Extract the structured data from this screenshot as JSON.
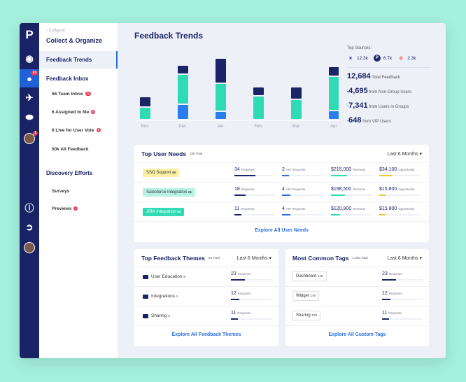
{
  "sidebar": {
    "collapse": "‹ Collapse",
    "heading": "Collect & Organize",
    "trends": "Feedback Trends",
    "inbox": "Feedback Inbox",
    "inbox_items": [
      {
        "label": "56 Team Inbox",
        "badge": "12"
      },
      {
        "label": "6 Assigned to Me",
        "badge": "6"
      },
      {
        "label": "6 Live for User Vote",
        "badge": "6"
      },
      {
        "label": "50k All Feedback",
        "badge": ""
      }
    ],
    "discovery": "Discovery Efforts",
    "discovery_items": [
      {
        "label": "Surveys",
        "badge": ""
      },
      {
        "label": "Previews",
        "badge": "2"
      }
    ]
  },
  "rail": {
    "inbox_badge": "23",
    "avatar_badge": "1",
    "icons": [
      "logo-p-icon",
      "eye-icon",
      "chat-icon",
      "rocket-icon",
      "toggle-icon",
      "avatar",
      "help-icon",
      "logout-icon",
      "avatar"
    ]
  },
  "page": {
    "title": "Feedback Trends"
  },
  "chart_data": {
    "type": "bar",
    "stacked": true,
    "categories": [
      "Nov.",
      "Dec.",
      "Jan.",
      "Feb.",
      "Mar.",
      "Apr."
    ],
    "series": [
      {
        "color": "#2a7ff0",
        "values": [
          0,
          22,
          12,
          0,
          0,
          13
        ]
      },
      {
        "color": "#2edbb5",
        "values": [
          18,
          43,
          40,
          34,
          29,
          49
        ]
      },
      {
        "color": "#1b2466",
        "values": [
          15,
          13,
          36,
          13,
          18,
          14
        ]
      }
    ]
  },
  "stats": {
    "top_sources_label": "Top Sources:",
    "sources": [
      {
        "icon": "zendesk-icon",
        "value": "12.3k"
      },
      {
        "icon": "productboard-icon",
        "value": "6.7k"
      },
      {
        "icon": "pinwheel-icon",
        "value": "2.3k"
      }
    ],
    "total": "12,684",
    "total_label": "Total Feedback",
    "breakdown": [
      {
        "value": "4,695",
        "label": "from Non-Group Users",
        "color": "#1b2466"
      },
      {
        "value": "7,341",
        "label": "from Users in Groups",
        "color": "#2edbb5"
      },
      {
        "value": "648",
        "label": "from VIP Users",
        "color": "#2a70e0"
      }
    ]
  },
  "needs": {
    "title": "Top User Needs",
    "total": "348 Total",
    "range": "Last 6 Months",
    "explore": "Explore All User Needs",
    "rows": [
      {
        "name": "SSO Support",
        "count": "45",
        "tag_bg": "#fdf0a6",
        "req": "34",
        "req_pct": 52,
        "vip": "2",
        "vip_pct": 17,
        "rev": "$215,000",
        "rev_pct": 40,
        "opp": "$34,100",
        "opp_pct": 32
      },
      {
        "name": "Salesforce Integration",
        "count": "21",
        "tag_bg": "#b7f2e3",
        "req": "18",
        "req_pct": 27,
        "vip": "4",
        "vip_pct": 20,
        "rev": "$198,500",
        "rev_pct": 34,
        "opp": "$15,800",
        "opp_pct": 15
      },
      {
        "name": "JIRA Integration",
        "count": "53",
        "tag_bg": "#2edbb5",
        "req": "11",
        "req_pct": 18,
        "vip": "4",
        "vip_pct": 20,
        "rev": "$120,900",
        "rev_pct": 22,
        "opp": "$15,800",
        "opp_pct": 15
      }
    ],
    "labels": {
      "req": "Requests",
      "vip": "VIP Requests",
      "rev": "Revenue",
      "opp": "Opportunity"
    }
  },
  "themes": {
    "title": "Top Feedback Themes",
    "total": "53 Total",
    "range": "Last 6 Months",
    "explore": "Explore All Feedback Themes",
    "rows": [
      {
        "name": "User Education",
        "count": "9",
        "req": "23",
        "pct": 35
      },
      {
        "name": "Integrations",
        "count": "1",
        "req": "12",
        "pct": 20
      },
      {
        "name": "Sharing",
        "count": "3",
        "req": "11",
        "pct": 18
      }
    ]
  },
  "tags": {
    "title": "Most Common Tags",
    "total": "1,030 Total",
    "range": "Last 6 Months",
    "explore": "Explore All Custom Tags",
    "rows": [
      {
        "name": "Dashboard",
        "count": "176",
        "req": "23",
        "pct": 35
      },
      {
        "name": "Widget",
        "count": "178",
        "req": "12",
        "pct": 20
      },
      {
        "name": "Sharing",
        "count": "178",
        "req": "11",
        "pct": 18
      }
    ]
  },
  "requests_label": "Requests"
}
